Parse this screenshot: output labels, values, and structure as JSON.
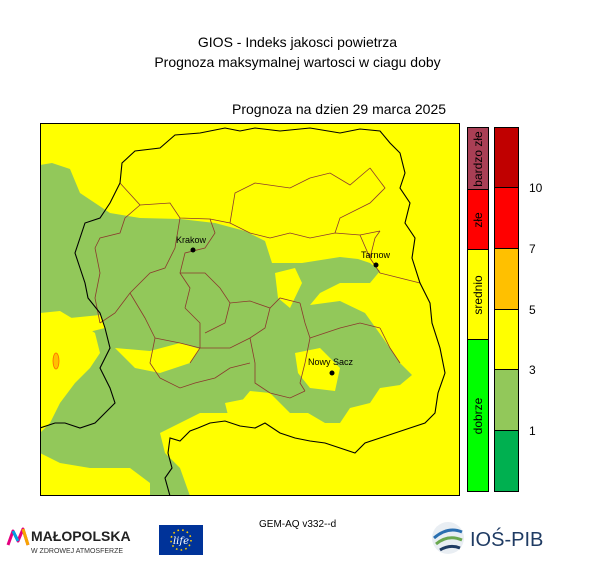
{
  "header": {
    "title": "GIOS - Indeks jakosci powietrza",
    "subtitle": "Prognoza maksymalnej wartosci w ciagu doby",
    "forecast_date": "Prognoza na dzien  29 marca 2025"
  },
  "map": {
    "cities": [
      {
        "name": "Krakow"
      },
      {
        "name": "Tarnow"
      },
      {
        "name": "Nowy Sacz"
      }
    ]
  },
  "legend": {
    "categories": [
      {
        "label": "bardzo złe",
        "color": "#a93f55"
      },
      {
        "label": "złe",
        "color": "#ff0000"
      },
      {
        "label": "srednio",
        "color": "#ffff00"
      },
      {
        "label": "dobrze",
        "color": "#00ff00"
      }
    ],
    "bands": [
      {
        "color": "#c00000"
      },
      {
        "color": "#ff0000"
      },
      {
        "color": "#ffc000"
      },
      {
        "color": "#ffff00"
      },
      {
        "color": "#92c85a"
      },
      {
        "color": "#00b050"
      }
    ],
    "ticks": [
      "10",
      "7",
      "5",
      "3",
      "1"
    ],
    "field_colors": {
      "yellow": "#ffff00",
      "green": "#92c85a"
    }
  },
  "footer": {
    "model": "GEM-AQ v332--d",
    "logo_malopolska_main": "MAŁOPOLSKA",
    "logo_malopolska_sub": "W ZDROWEJ ATMOSFERZE",
    "logo_life": "life",
    "logo_ios": "IOŚ-PIB"
  }
}
